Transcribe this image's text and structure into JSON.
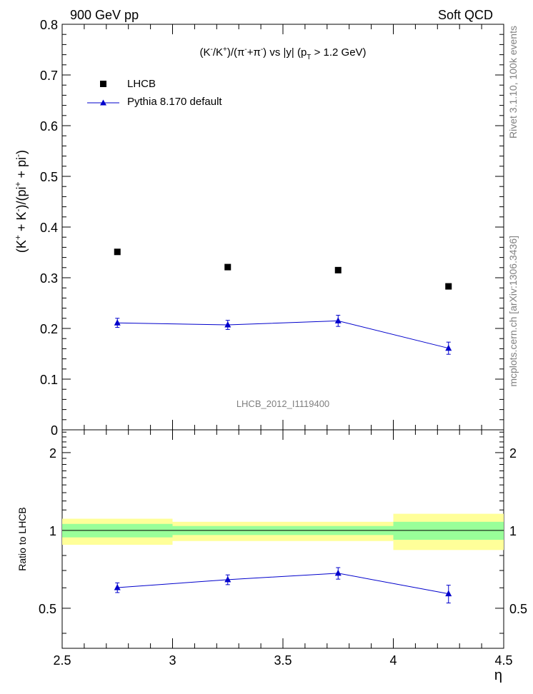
{
  "header": {
    "left": "900 GeV pp",
    "right": "Soft QCD"
  },
  "side_labels": {
    "rivet": "Rivet 3.1.10,  100k events",
    "mcplots": "mcplots.cern.ch [arXiv:1306.3436]"
  },
  "chart_data": [
    {
      "type": "scatter",
      "panel": "main",
      "title": "(K⁻/K⁺)/(π⁻+π⁻) vs |y| (p_T > 1.2 GeV)",
      "title_parts": {
        "left": "(K",
        "a": "-",
        "b": "/K",
        "c": "+",
        "d": ")/(π",
        "e": "-",
        "f": "+π",
        "g": "-",
        "h": ") vs |y| (p",
        "i": "T",
        "j": " > 1.2 GeV)"
      },
      "ylabel_parts": {
        "a": "(K",
        "b": "+",
        "c": " + K",
        "d": "-",
        "e": ")/(pi",
        "f": "+",
        "g": " + pi",
        "h": "-",
        "i": ")"
      },
      "watermark": "LHCB_2012_I1119400",
      "xlim": [
        2.5,
        4.5
      ],
      "ylim": [
        0,
        0.8
      ],
      "yticks": [
        0,
        0.1,
        0.2,
        0.3,
        0.4,
        0.5,
        0.6,
        0.7,
        0.8
      ],
      "ytick_labels": [
        "0",
        "0.1",
        "0.2",
        "0.3",
        "0.4",
        "0.5",
        "0.6",
        "0.7",
        "0.8"
      ],
      "legend_position": "top-left",
      "series": [
        {
          "name": "LHCB",
          "marker": "square",
          "color": "#000000",
          "x": [
            2.75,
            3.25,
            3.75,
            4.25
          ],
          "y": [
            0.351,
            0.321,
            0.315,
            0.283
          ],
          "yerr": [
            0,
            0,
            0,
            0
          ]
        },
        {
          "name": "Pythia 8.170 default",
          "marker": "triangle",
          "color": "#0000cc",
          "x": [
            2.75,
            3.25,
            3.75,
            4.25
          ],
          "y": [
            0.211,
            0.207,
            0.215,
            0.161
          ],
          "yerr": [
            0.009,
            0.009,
            0.011,
            0.012
          ]
        }
      ]
    },
    {
      "type": "scatter",
      "panel": "ratio",
      "ylabel": "Ratio to LHCB",
      "xlabel": "η",
      "xlim": [
        2.5,
        4.5
      ],
      "ylim": [
        0.35,
        2.45
      ],
      "xticks": [
        2.5,
        3,
        3.5,
        4,
        4.5
      ],
      "xtick_labels": [
        "2.5",
        "3",
        "3.5",
        "4",
        "4.5"
      ],
      "yticks": [
        0.5,
        1,
        2
      ],
      "ytick_labels": [
        "0.5",
        "1",
        "2"
      ],
      "bands": [
        {
          "x": [
            2.5,
            3.0
          ],
          "outer": [
            0.88,
            1.11
          ],
          "inner": [
            0.94,
            1.06
          ]
        },
        {
          "x": [
            3.0,
            4.0
          ],
          "outer": [
            0.91,
            1.08
          ],
          "inner": [
            0.96,
            1.04
          ]
        },
        {
          "x": [
            4.0,
            4.5
          ],
          "outer": [
            0.84,
            1.16
          ],
          "inner": [
            0.92,
            1.08
          ]
        }
      ],
      "band_colors": {
        "outer": "#ffff99",
        "inner": "#99ff99"
      },
      "series": [
        {
          "name": "Pythia 8.170 default / LHCB",
          "color": "#0000cc",
          "x": [
            2.75,
            3.25,
            3.75,
            4.25
          ],
          "y": [
            0.601,
            0.645,
            0.683,
            0.569
          ],
          "yerr": [
            0.026,
            0.028,
            0.035,
            0.045
          ]
        }
      ]
    }
  ]
}
